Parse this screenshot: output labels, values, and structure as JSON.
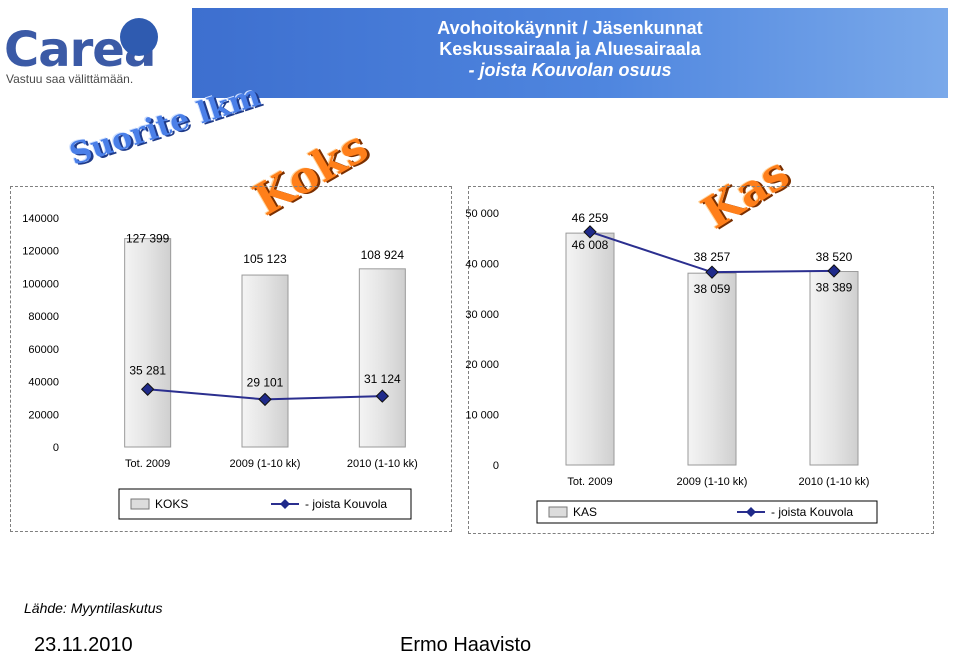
{
  "header": {
    "title_line1": "Avohoitokäynnit  / Jäsenkunnat",
    "title_line2": "Keskussairaala  ja Aluesairaala",
    "title_line3": "- joista Kouvolan osuus"
  },
  "logo": {
    "name": "Carea",
    "tagline": "Vastuu saa välittämään."
  },
  "wordart": {
    "suorite": "Suorite lkm",
    "koks": "Koks",
    "kas": "Kas"
  },
  "colors": {
    "banner": "#4f86df",
    "bar": "#e6e6e6",
    "line": "#2b2f8f",
    "marker": "#1f2a8a"
  },
  "chart_data": [
    {
      "type": "bar",
      "categories": [
        "Tot. 2009",
        "2009 (1-10 kk)",
        "2010 (1-10 kk)"
      ],
      "series": [
        {
          "name": "KOKS",
          "type": "bar",
          "values": [
            127399,
            105123,
            108924
          ],
          "labels": [
            "127 399",
            "105 123",
            "108 924"
          ]
        },
        {
          "name": "- joista Kouvola",
          "type": "line",
          "values": [
            35281,
            29101,
            31124
          ],
          "labels": [
            "35 281",
            "29 101",
            "31 124"
          ]
        }
      ],
      "ylim": [
        0,
        140000
      ],
      "yticks": [
        0,
        20000,
        40000,
        60000,
        80000,
        100000,
        120000,
        140000
      ],
      "ytick_labels": [
        "0",
        "20000",
        "40000",
        "60000",
        "80000",
        "100000",
        "120000",
        "140000"
      ],
      "legend": "bottom"
    },
    {
      "type": "bar",
      "categories": [
        "Tot. 2009",
        "2009 (1-10 kk)",
        "2010 (1-10 kk)"
      ],
      "series": [
        {
          "name": "KAS",
          "type": "bar",
          "values": [
            46008,
            38059,
            38389
          ],
          "labels": [
            "46 008",
            "38 059",
            "38 389"
          ]
        },
        {
          "name": "- joista Kouvola",
          "type": "line",
          "values": [
            46259,
            38257,
            38520
          ],
          "labels": [
            "46 259",
            "38 257",
            "38 520"
          ]
        }
      ],
      "ylim": [
        0,
        50000
      ],
      "yticks": [
        0,
        10000,
        20000,
        30000,
        40000,
        50000
      ],
      "ytick_labels": [
        "0",
        "10 000",
        "20 000",
        "30 000",
        "40 000",
        "50 000"
      ],
      "legend": "bottom"
    }
  ],
  "footer": {
    "source": "Lähde: Myyntilaskutus",
    "date": "23.11.2010",
    "author": "Ermo Haavisto"
  }
}
